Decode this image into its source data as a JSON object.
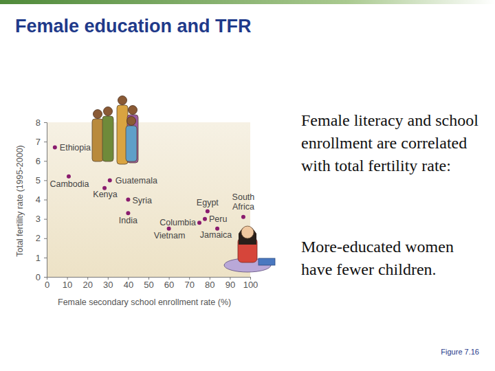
{
  "chart_data": {
    "type": "scatter",
    "title": "Female education and TFR",
    "x_label": "Female secondary school enrollment rate (%)",
    "y_label": "Total fertility rate (1995-2000)",
    "labels": [
      "Ethiopia",
      "Cambodia",
      "Kenya",
      "Guatemala",
      "Syria",
      "India",
      "Vietnam",
      "Columbia",
      "Peru",
      "Egypt",
      "Jamaica",
      "South Africa"
    ],
    "x": [
      4,
      10.8,
      28.4,
      31,
      40,
      40,
      60,
      75,
      77.7,
      79,
      83.8,
      96.6
    ],
    "values": [
      6.7,
      5.2,
      4.6,
      5.0,
      4.0,
      3.3,
      2.5,
      2.8,
      3.0,
      3.4,
      2.5,
      3.1
    ],
    "color": "#8a1c6e",
    "marker": "circle",
    "xlim": [
      0,
      100
    ],
    "xticks": [
      0,
      10,
      20,
      30,
      40,
      50,
      60,
      70,
      80,
      90,
      100
    ],
    "ylim": [
      0,
      8
    ],
    "yticks": [
      0,
      1,
      2,
      3,
      4,
      5,
      6,
      7,
      8
    ],
    "grid": false
  },
  "slide": {
    "bullets": [
      "Female literacy and school enrollment are correlated with total fertility rate:",
      "More-educated women have fewer children."
    ],
    "figure": "Figure 7.16"
  }
}
